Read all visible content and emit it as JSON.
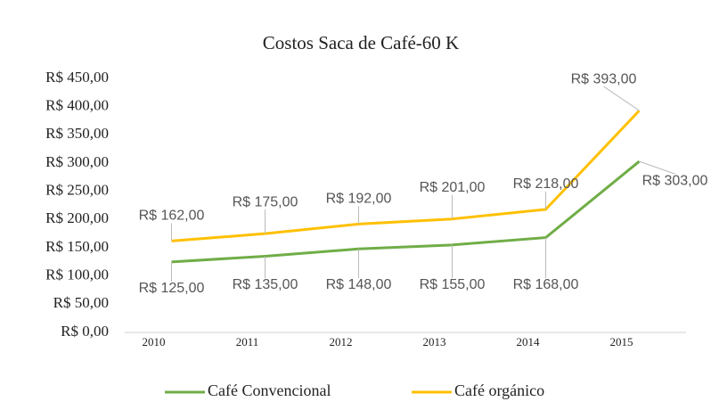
{
  "chart_data": {
    "type": "line",
    "title": "Costos Saca de Café-60  K",
    "categories": [
      "2010",
      "2011",
      "2012",
      "2013",
      "2014",
      "2015"
    ],
    "series": [
      {
        "name": "Café Convencional",
        "color": "#70ad47",
        "values": [
          125,
          135,
          148,
          155,
          168,
          303
        ],
        "value_labels": [
          "R$ 125,00",
          "R$ 135,00",
          "R$ 148,00",
          "R$ 155,00",
          "R$ 168,00",
          "R$ 303,00"
        ]
      },
      {
        "name": "Café orgánico",
        "color": "#ffc000",
        "values": [
          162,
          175,
          192,
          201,
          218,
          393
        ],
        "value_labels": [
          "R$ 162,00",
          "R$ 175,00",
          "R$ 192,00",
          "R$ 201,00",
          "R$ 218,00",
          "R$ 393,00"
        ]
      }
    ],
    "ylim": [
      0,
      450
    ],
    "yticks": [
      {
        "value": 0,
        "label": "R$ 0,00"
      },
      {
        "value": 50,
        "label": "R$ 50,00"
      },
      {
        "value": 100,
        "label": "R$ 100,00"
      },
      {
        "value": 150,
        "label": "R$ 150,00"
      },
      {
        "value": 200,
        "label": "R$ 200,00"
      },
      {
        "value": 250,
        "label": "R$ 250,00"
      },
      {
        "value": 300,
        "label": "R$ 300,00"
      },
      {
        "value": 350,
        "label": "R$ 350,00"
      },
      {
        "value": 400,
        "label": "R$ 400,00"
      },
      {
        "value": 450,
        "label": "R$ 450,00"
      }
    ],
    "grid": false,
    "legend": "bottom"
  }
}
